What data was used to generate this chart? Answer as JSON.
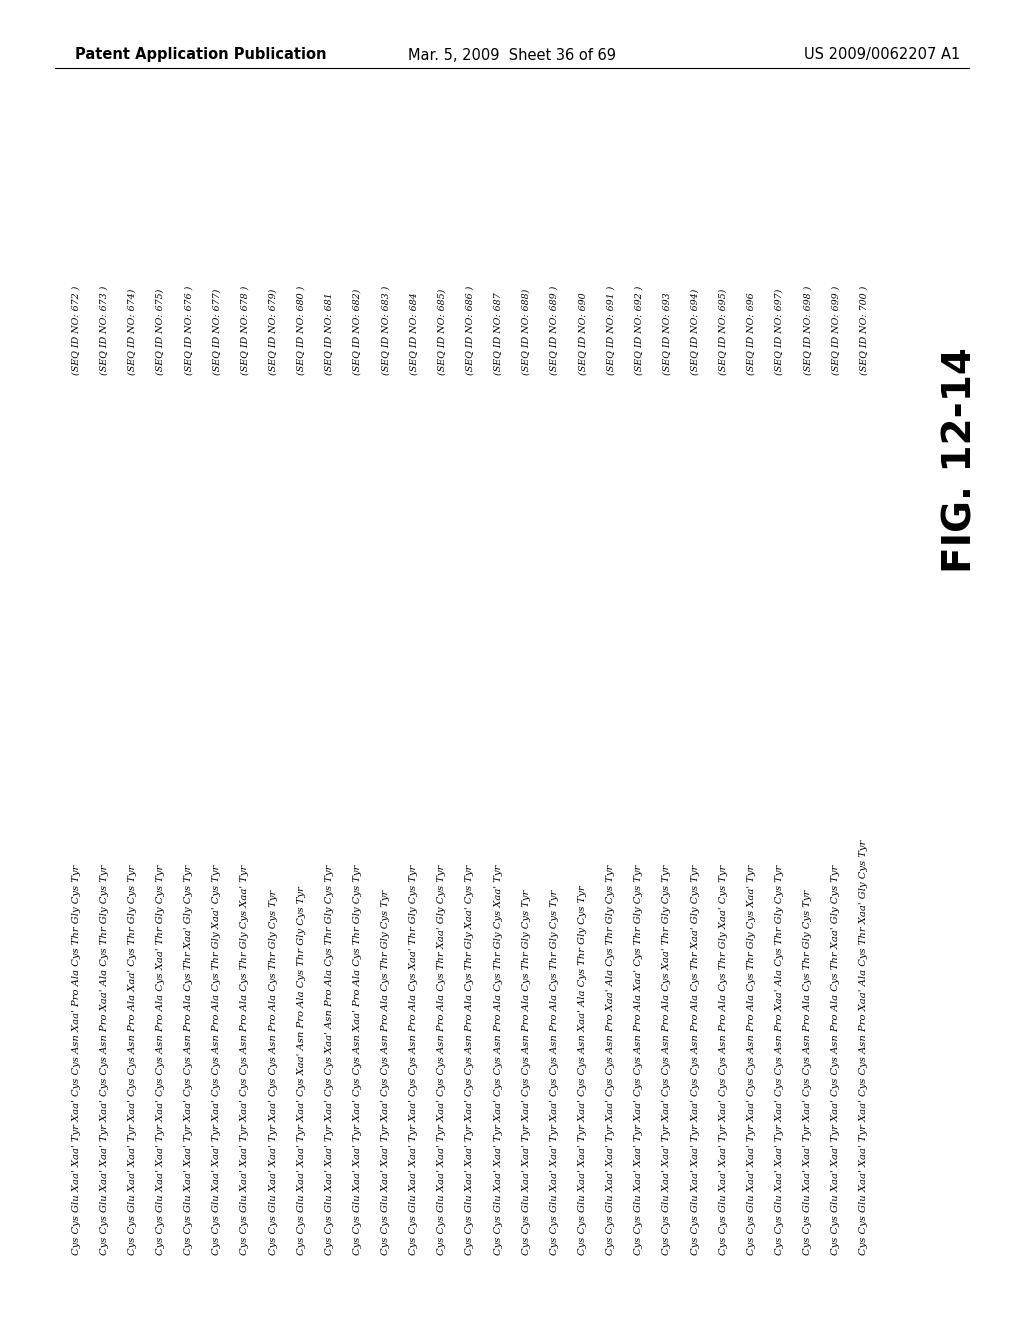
{
  "header_left": "Patent Application Publication",
  "header_center": "Mar. 5, 2009  Sheet 36 of 69",
  "header_right": "US 2009/0062207 A1",
  "fig_label": "FIG. 12-14",
  "seq_ids": [
    "(SEQ ID NO: 672 )",
    "(SEQ ID NO: 673 )",
    "(SEQ ID NO: 674)",
    "(SEQ ID NO: 675)",
    "(SEQ ID NO: 676 )",
    "(SEQ ID NO: 677)",
    "(SEQ ID NO: 678 )",
    "(SEQ ID NO: 679)",
    "(SEQ ID NO: 680 )",
    "(SEQ ID NO: 681",
    "(SEQ ID NO: 682)",
    "(SEQ ID NO: 683 )",
    "(SEQ ID NO: 684",
    "(SEQ ID NO: 685)",
    "(SEQ ID NO: 686 )",
    "(SEQ ID NO: 687",
    "(SEQ ID NO: 688)",
    "(SEQ ID NO: 689 )",
    "(SEQ ID NO: 690",
    "(SEQ ID NO: 691 )",
    "(SEQ ID NO: 692 )",
    "(SEQ ID NO: 693",
    "(SEQ ID NO: 694)",
    "(SEQ ID NO: 695)",
    "(SEQ ID NO: 696",
    "(SEQ ID NO: 697)",
    "(SEQ ID NO: 698 )",
    "(SEQ ID NO: 699 )",
    "(SEQ ID NO: 700 )"
  ],
  "sequences": [
    "Cys Cys Glu Xaa' Xaa' Tyr Xaa' Cys Cys Asn Xaa' Pro Ala Cys Thr Gly Cys Tyr",
    "Cys Cys Glu Xaa' Xaa' Tyr Xaa' Cys Cys Asn Pro Xaa' Ala Cys Thr Gly Cys Tyr",
    "Cys Cys Glu Xaa' Xaa' Tyr Xaa' Cys Cys Asn Pro Ala Xaa' Cys Thr Gly Cys Tyr",
    "Cys Cys Glu Xaa' Xaa' Tyr Xaa' Cys Cys Asn Pro Ala Cys Xaa' Thr Gly Cys Tyr",
    "Cys Cys Glu Xaa' Xaa' Tyr Xaa' Cys Cys Asn Pro Ala Cys Thr Xaa' Gly Cys Tyr",
    "Cys Cys Glu Xaa' Xaa' Tyr Xaa' Cys Cys Asn Pro Ala Cys Thr Gly Xaa' Cys Tyr",
    "Cys Cys Glu Xaa' Xaa' Tyr Xaa' Cys Cys Asn Pro Ala Cys Thr Gly Cys Xaa' Tyr",
    "Cys Cys Glu Xaa' Xaa' Tyr Xaa' Cys Cys Asn Pro Ala Cys Thr Gly Cys Tyr",
    "Cys Cys Glu Xaa' Xaa' Tyr Xaa' Cys Xaa' Asn Pro Ala Cys Thr Gly Cys Tyr",
    "Cys Cys Glu Xaa' Xaa' Tyr Xaa' Cys Cys Xaa' Asn Pro Ala Cys Thr Gly Cys Tyr",
    "Cys Cys Glu Xaa' Xaa' Tyr Xaa' Cys Cys Asn Xaa' Pro Ala Cys Thr Gly Cys Tyr",
    "Cys Cys Glu Xaa' Xaa' Tyr Xaa' Cys Cys Asn Pro Ala Cys Thr Gly Cys Tyr",
    "Cys Cys Glu Xaa' Xaa' Tyr Xaa' Cys Cys Asn Pro Ala Cys Xaa' Thr Gly Cys Tyr",
    "Cys Cys Glu Xaa' Xaa' Tyr Xaa' Cys Cys Asn Pro Ala Cys Thr Xaa' Gly Cys Tyr",
    "Cys Cys Glu Xaa' Xaa' Tyr Xaa' Cys Cys Asn Pro Ala Cys Thr Gly Xaa' Cys Tyr",
    "Cys Cys Glu Xaa' Xaa' Tyr Xaa' Cys Cys Asn Pro Ala Cys Thr Gly Cys Xaa' Tyr",
    "Cys Cys Glu Xaa' Xaa' Tyr Xaa' Cys Cys Asn Pro Ala Cys Thr Gly Cys Tyr",
    "Cys Cys Glu Xaa' Xaa' Tyr Xaa' Cys Cys Asn Pro Ala Cys Thr Gly Cys Tyr",
    "Cys Cys Glu Xaa' Xaa' Tyr Xaa' Cys Cys Asn Xaa' Ala Cys Thr Gly Cys Tyr",
    "Cys Cys Glu Xaa' Xaa' Tyr Xaa' Cys Cys Asn Pro Xaa' Ala Cys Thr Gly Cys Tyr",
    "Cys Cys Glu Xaa' Xaa' Tyr Xaa' Cys Cys Asn Pro Ala Xaa' Cys Thr Gly Cys Tyr",
    "Cys Cys Glu Xaa' Xaa' Tyr Xaa' Cys Cys Asn Pro Ala Cys Xaa' Thr Gly Cys Tyr",
    "Cys Cys Glu Xaa' Xaa' Tyr Xaa' Cys Cys Asn Pro Ala Cys Thr Xaa' Gly Cys Tyr",
    "Cys Cys Glu Xaa' Xaa' Tyr Xaa' Cys Cys Asn Pro Ala Cys Thr Gly Xaa' Cys Tyr",
    "Cys Cys Glu Xaa' Xaa' Tyr Xaa' Cys Cys Asn Pro Ala Cys Thr Gly Cys Xaa' Tyr",
    "Cys Cys Glu Xaa' Xaa' Tyr Xaa' Cys Cys Asn Pro Xaa' Ala Cys Thr Gly Cys Tyr",
    "Cys Cys Glu Xaa' Xaa' Tyr Xaa' Cys Cys Asn Pro Ala Cys Thr Gly Cys Tyr",
    "Cys Cys Glu Xaa' Xaa' Tyr Xaa' Cys Cys Asn Pro Ala Cys Thr Xaa' Gly Cys Tyr",
    "Cys Cys Glu Xaa' Xaa' Tyr Xaa' Cys Cys Asn Pro Xaa' Ala Cys Thr Xaa' Gly Cys Tyr"
  ],
  "bg_color": "#ffffff",
  "text_color": "#000000",
  "header_fontsize": 10.5,
  "body_fontsize": 7.2,
  "seq_id_fontsize": 6.8,
  "fig_label_fontsize": 28
}
